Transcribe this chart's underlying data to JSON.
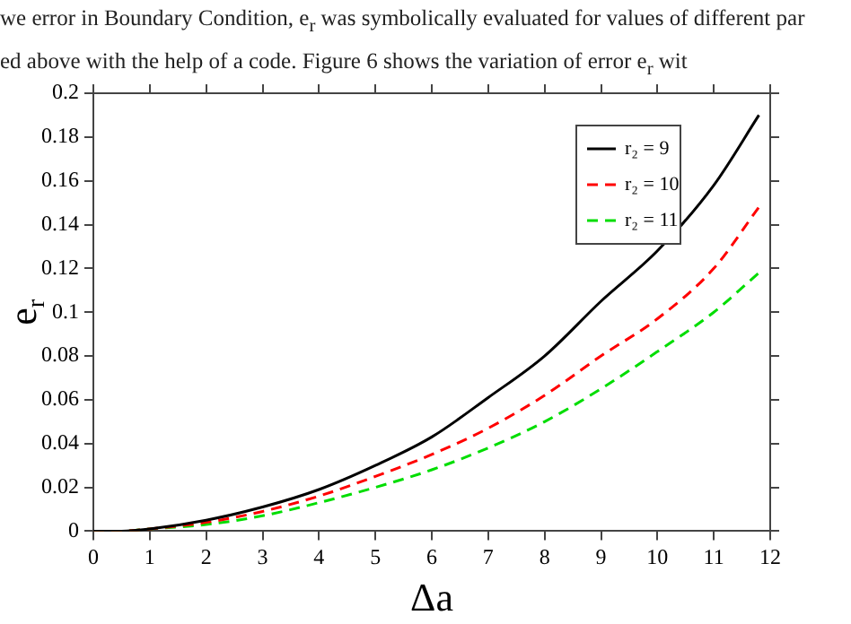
{
  "chart_data": {
    "type": "line",
    "xlabel": "Δa",
    "ylabel": "e$_{r}$",
    "annotations": [
      "we error in Boundary Condition, e$_{r}$ was symbolically evaluated for values of different par",
      "ed above with the help of a code. Figure 6 shows the variation of error e$_{r}$ wit"
    ],
    "x": [
      0,
      0.5,
      1,
      2,
      3,
      4,
      5,
      6,
      7,
      8,
      9,
      10,
      11,
      11.8
    ],
    "series": [
      {
        "name": "r₂ = 9",
        "color": "#000000",
        "line_style": "solid",
        "values": [
          0,
          0,
          0.001,
          0.005,
          0.011,
          0.019,
          0.03,
          0.043,
          0.061,
          0.08,
          0.105,
          0.128,
          0.158,
          0.19
        ]
      },
      {
        "name": "r₂ = 10",
        "color": "#ff0000",
        "line_style": "dashed",
        "values": [
          0,
          0,
          0.001,
          0.004,
          0.009,
          0.016,
          0.025,
          0.035,
          0.047,
          0.062,
          0.08,
          0.097,
          0.12,
          0.148
        ]
      },
      {
        "name": "r₂ = 11",
        "color": "#00dd00",
        "line_style": "dashed",
        "values": [
          0,
          0,
          0.001,
          0.003,
          0.007,
          0.013,
          0.02,
          0.028,
          0.038,
          0.05,
          0.065,
          0.082,
          0.1,
          0.118
        ]
      }
    ],
    "xlim": [
      0,
      12
    ],
    "xticks": [
      0,
      1,
      2,
      3,
      4,
      5,
      6,
      7,
      8,
      9,
      10,
      11,
      12
    ],
    "ylim": [
      0,
      0.2
    ],
    "yticks": [
      0,
      0.02,
      0.04,
      0.06,
      0.08,
      0.1,
      0.12,
      0.14,
      0.16,
      0.18,
      0.2
    ],
    "grid": false,
    "legend": "top right",
    "marker": "none"
  }
}
